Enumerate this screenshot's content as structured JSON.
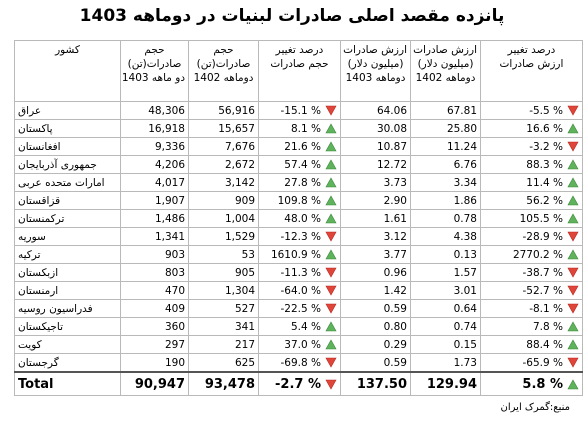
{
  "title": "پانزده مقصد اصلی صادرات لبنیات در دوماهه 1403",
  "table": {
    "headers": [
      [
        "کشور"
      ],
      [
        "حجم",
        "صادرات(تن)",
        "دو ماهه 1403"
      ],
      [
        "حجم",
        "صادرات(تن)",
        "دوماهه 1402"
      ],
      [
        "درصد تغییر",
        "حجم صادرات"
      ],
      [
        "ارزش صادرات",
        "(میلیون دلار)",
        "دوماهه 1403"
      ],
      [
        "ارزش صادرات",
        "(میلیون دلار)",
        "دوماهه 1402"
      ],
      [
        "درصد تغییر",
        "ارزش صادرات"
      ]
    ],
    "rows": [
      [
        "عراق",
        "48,306",
        "56,916",
        "-15.1 %",
        "64.06",
        "67.81",
        "-5.5 %"
      ],
      [
        "پاکستان",
        "16,918",
        "15,657",
        "8.1 %",
        "30.08",
        "25.80",
        "16.6 %"
      ],
      [
        "افغانستان",
        "9,336",
        "7,676",
        "21.6 %",
        "10.87",
        "11.24",
        "-3.2 %"
      ],
      [
        "جمهوری آذربایجان",
        "4,206",
        "2,672",
        "57.4 %",
        "12.72",
        "6.76",
        "88.3 %"
      ],
      [
        "امارات متحده عربی",
        "4,017",
        "3,142",
        "27.8 %",
        "3.73",
        "3.34",
        "11.4 %"
      ],
      [
        "قزاقستان",
        "1,907",
        "909",
        "109.8 %",
        "2.90",
        "1.86",
        "56.2 %"
      ],
      [
        "ترکمنستان",
        "1,486",
        "1,004",
        "48.0 %",
        "1.61",
        "0.78",
        "105.5 %"
      ],
      [
        "سوریه",
        "1,341",
        "1,529",
        "-12.3 %",
        "3.12",
        "4.38",
        "-28.9 %"
      ],
      [
        "ترکیه",
        "903",
        "53",
        "1610.9 %",
        "3.77",
        "0.13",
        "2770.2 %"
      ],
      [
        "ازبکستان",
        "803",
        "905",
        "-11.3 %",
        "0.96",
        "1.57",
        "-38.7 %"
      ],
      [
        "ارمنستان",
        "470",
        "1,304",
        "-64.0 %",
        "1.42",
        "3.01",
        "-52.7 %"
      ],
      [
        "فدراسیون روسیه",
        "409",
        "527",
        "-22.5 %",
        "0.59",
        "0.64",
        "-8.1 %"
      ],
      [
        "تاجیکستان",
        "360",
        "341",
        "5.4 %",
        "0.80",
        "0.74",
        "7.8 %"
      ],
      [
        "کویت",
        "297",
        "217",
        "37.0 %",
        "0.29",
        "0.15",
        "88.4 %"
      ],
      [
        "گرجستان",
        "190",
        "625",
        "-69.8 %",
        "0.59",
        "1.73",
        "-65.9 %"
      ]
    ],
    "total": [
      "Total",
      "90,947",
      "93,478",
      "-2.7 %",
      "137.50",
      "129.94",
      "5.8 %"
    ]
  },
  "source": "منبع:گمرک ایران"
}
